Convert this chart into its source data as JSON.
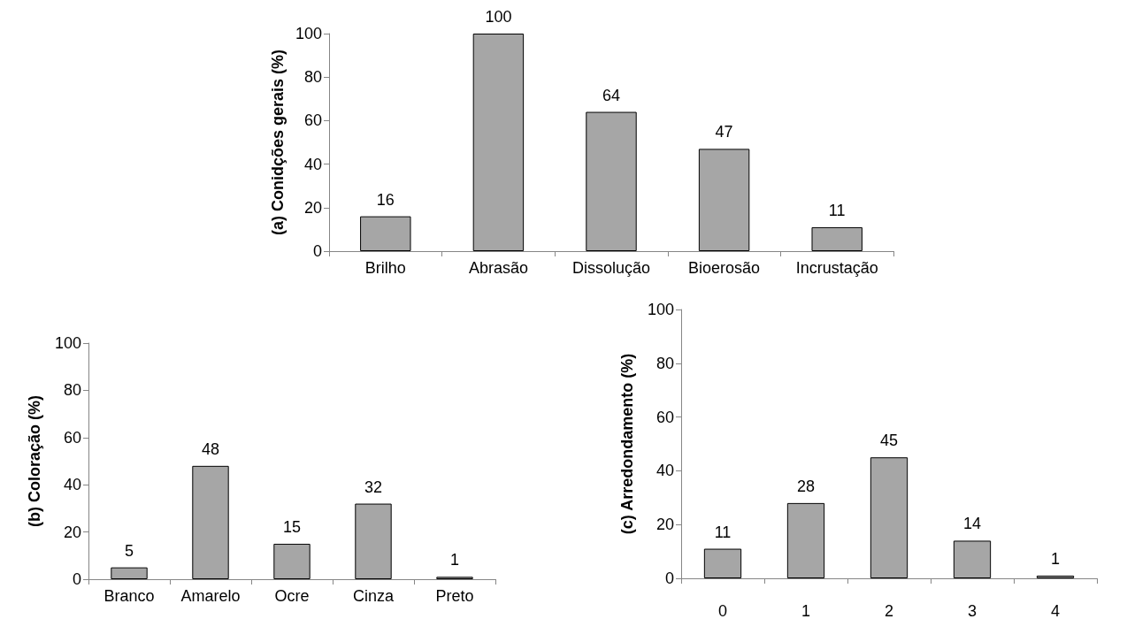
{
  "chart_data": [
    {
      "type": "bar",
      "ylabel": "(a) Conidções gerais (%)",
      "categories": [
        "Brilho",
        "Abrasão",
        "Dissolução",
        "Bioerosão",
        "Incrustação"
      ],
      "values": [
        16,
        100,
        64,
        47,
        11
      ],
      "color": "#a6a6a6",
      "ylim": [
        0,
        100
      ],
      "yticks": [
        0,
        20,
        40,
        60,
        80,
        100
      ],
      "grid": false,
      "data_labels": true
    },
    {
      "type": "bar",
      "ylabel": "(b) Coloração (%)",
      "categories": [
        "Branco",
        "Amarelo",
        "Ocre",
        "Cinza",
        "Preto"
      ],
      "values": [
        5,
        48,
        15,
        32,
        1
      ],
      "color": "#a6a6a6",
      "ylim": [
        0,
        100
      ],
      "yticks": [
        0,
        20,
        40,
        60,
        80,
        100
      ],
      "grid": false,
      "data_labels": true
    },
    {
      "type": "bar",
      "ylabel": "(c) Arredondamento (%)",
      "categories": [
        "0",
        "1",
        "2",
        "3",
        "4"
      ],
      "values": [
        11,
        28,
        45,
        14,
        1
      ],
      "color": "#a6a6a6",
      "ylim": [
        0,
        100
      ],
      "yticks": [
        0,
        20,
        40,
        60,
        80,
        100
      ],
      "grid": false,
      "data_labels": true
    }
  ]
}
